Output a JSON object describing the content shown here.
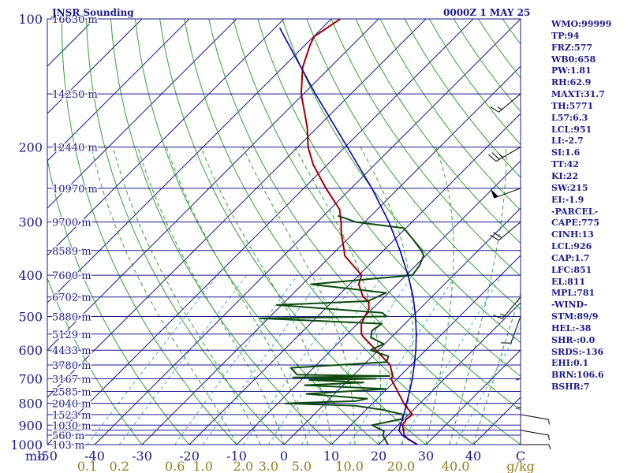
{
  "header": {
    "title": "JNSR Sounding",
    "datetime": "0000Z  1 MAY 25"
  },
  "indices": [
    "WMO:99999",
    "TP:94",
    "FRZ:577",
    "WB0:658",
    "PW:1.81",
    "RH:62.9",
    "MAXT:31.7",
    "TH:5771",
    "L57:6.3",
    "LCL:951",
    "LI:-2.7",
    "SI:1.6",
    "TT:42",
    "KI:22",
    "SW:215",
    "EI:-1.9",
    "-PARCEL-",
    "CAPE:775",
    "CINH:13",
    "LCL:926",
    "CAP:1.7",
    "LFC:851",
    "EL:811",
    "MPL:781",
    "-WIND-",
    "STM:89/9",
    "HEL:-38",
    "SHR-:0.0",
    "SRDS:-136",
    "EHI:0.1",
    "BRN:106.6",
    "BSHR:7"
  ],
  "colors": {
    "isobar": "#1a1a8c",
    "isotherm": "#1a1a8c",
    "dry_adiabat": "#2ea32e",
    "moist_adiabat": "#2ea32e",
    "mixing_ratio": "#3aaed8",
    "temperature": "#a00000",
    "dewpoint": "#0c4a0c",
    "parcel": "#0000b4",
    "label_blue": "#1a1a8c",
    "mixing_label": "#9a7a1a",
    "wind": "#000000"
  },
  "chart_data": {
    "type": "skew-t",
    "pressure_unit": "mb",
    "temperature_unit": "C",
    "mixing_ratio_unit": "g/kg",
    "y_scale": "log",
    "pressure_range": [
      1000,
      100
    ],
    "temperature_range": [
      -50,
      50
    ],
    "isobars": [
      100,
      150,
      200,
      250,
      300,
      350,
      400,
      450,
      500,
      550,
      600,
      650,
      700,
      750,
      800,
      850,
      900,
      925,
      950,
      1000
    ],
    "pressure_tick_labels": [
      "100",
      "200",
      "300",
      "400",
      "500",
      "600",
      "700",
      "800",
      "900",
      "1000"
    ],
    "temperature_ticks": [
      -50,
      -40,
      -30,
      -20,
      -10,
      0,
      10,
      20,
      30,
      40,
      50
    ],
    "temperature_tick_labels": [
      "-50",
      "-40",
      "-30",
      "-20",
      "-10",
      "0",
      "10",
      "20",
      "30",
      "40",
      "C"
    ],
    "axis_label_left": "mb",
    "height_labels": [
      {
        "p": 100,
        "text": "16630 m"
      },
      {
        "p": 150,
        "text": "14250 m"
      },
      {
        "p": 200,
        "text": "12440 m"
      },
      {
        "p": 250,
        "text": "10970 m"
      },
      {
        "p": 300,
        "text": "9700 m"
      },
      {
        "p": 350,
        "text": "8589 m"
      },
      {
        "p": 400,
        "text": "7600 m"
      },
      {
        "p": 450,
        "text": "6702 m"
      },
      {
        "p": 500,
        "text": "5880 m"
      },
      {
        "p": 550,
        "text": "5129 m"
      },
      {
        "p": 600,
        "text": "4433 m"
      },
      {
        "p": 650,
        "text": "3780 m"
      },
      {
        "p": 700,
        "text": "3167 m"
      },
      {
        "p": 750,
        "text": "2585 m"
      },
      {
        "p": 800,
        "text": "2040 m"
      },
      {
        "p": 850,
        "text": "1523 m"
      },
      {
        "p": 900,
        "text": "1030 m"
      },
      {
        "p": 950,
        "text": "560 m"
      },
      {
        "p": 1000,
        "text": "103 m"
      }
    ],
    "mixing_ratio_lines": [
      0.1,
      0.2,
      0.6,
      1.0,
      2.0,
      3.0,
      5.0,
      10.0,
      20.0,
      40.0
    ],
    "mixing_ratio_labels": [
      "0.1",
      "0.2",
      "0.6",
      "1.0",
      "2.0",
      "3.0",
      "5.0",
      "10.0",
      "20.0",
      "40.0",
      "g/kg"
    ],
    "series": [
      {
        "name": "temperature",
        "pressure": [
          1000,
          970,
          950,
          925,
          900,
          870,
          850,
          800,
          780,
          700,
          690,
          650,
          600,
          560,
          550,
          520,
          500,
          480,
          460,
          450,
          420,
          400,
          360,
          350,
          320,
          300,
          280,
          250,
          220,
          200,
          180,
          150,
          130,
          115,
          110,
          100
        ],
        "temp_c": [
          28.2,
          25.0,
          23.4,
          22.2,
          20.9,
          20.5,
          20.8,
          16.6,
          15.1,
          8.7,
          8.5,
          5.6,
          -0.5,
          -5.8,
          -7.0,
          -9.2,
          -10.0,
          -10.7,
          -12.5,
          -14.5,
          -18.1,
          -19.4,
          -27.1,
          -28.3,
          -32.4,
          -35.0,
          -38.0,
          -45.3,
          -53.0,
          -57.8,
          -62.1,
          -70.5,
          -75.8,
          -79.0,
          -79.9,
          -78.1
        ]
      },
      {
        "name": "dewpoint",
        "pressure": [
          1000,
          950,
          930,
          900,
          870,
          850,
          830,
          810,
          800,
          790,
          780,
          760,
          740,
          725,
          715,
          705,
          700,
          695,
          690,
          685,
          660,
          640,
          620,
          600,
          580,
          560,
          540,
          520,
          505,
          500,
          490,
          470,
          460,
          440,
          420,
          400,
          380,
          360,
          350,
          330,
          310,
          300,
          290
        ],
        "temp_c": [
          22.0,
          18.9,
          18.3,
          14.5,
          19.6,
          18.8,
          14.0,
          6.8,
          -8.4,
          6.0,
          7.9,
          -6.0,
          9.8,
          -8.2,
          3.7,
          -8.3,
          5.5,
          -12.3,
          7.8,
          -12.0,
          -14.8,
          4.2,
          3.4,
          -1.7,
          -0.2,
          -4.3,
          -5.5,
          -4.9,
          -31.7,
          -5.4,
          -7.1,
          -31.0,
          -12.6,
          -10.5,
          -28.2,
          -8.7,
          -9.2,
          -10.4,
          -12.0,
          -16.0,
          -20.5,
          -31.9,
          -37.0
        ]
      },
      {
        "name": "parcel",
        "pressure": [
          1000,
          950,
          926,
          900,
          850,
          800,
          750,
          700,
          650,
          600,
          550,
          500,
          450,
          400,
          350,
          300,
          250,
          200,
          150,
          105
        ],
        "temp_c": [
          28.2,
          23.0,
          21.3,
          20.5,
          19.0,
          17.2,
          15.3,
          13.2,
          10.7,
          7.9,
          4.6,
          0.7,
          -3.9,
          -9.6,
          -16.5,
          -24.9,
          -35.6,
          -49.5,
          -67.5,
          -89.0
        ]
      }
    ],
    "wind_barbs": [
      {
        "p": 1000,
        "dir": 90,
        "speed_kt": 5
      },
      {
        "p": 925,
        "dir": 100,
        "speed_kt": 5
      },
      {
        "p": 850,
        "dir": 100,
        "speed_kt": 5
      },
      {
        "p": 700,
        "dir": 180,
        "speed_kt": 5
      },
      {
        "p": 600,
        "dir": 180,
        "speed_kt": 5
      },
      {
        "p": 500,
        "dir": 200,
        "speed_kt": 10
      },
      {
        "p": 450,
        "dir": 220,
        "speed_kt": 15
      },
      {
        "p": 300,
        "dir": 230,
        "speed_kt": 20
      },
      {
        "p": 250,
        "dir": 250,
        "speed_kt": 50
      },
      {
        "p": 200,
        "dir": 240,
        "speed_kt": 25
      },
      {
        "p": 150,
        "dir": 230,
        "speed_kt": 15
      }
    ]
  }
}
